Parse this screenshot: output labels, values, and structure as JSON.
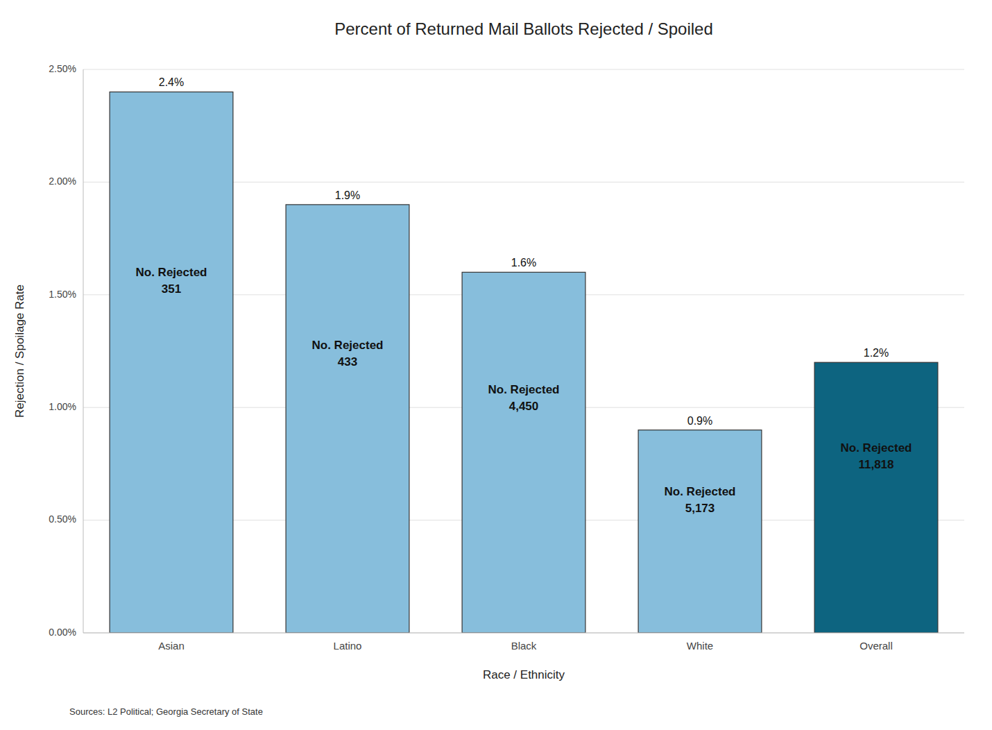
{
  "chart_data": {
    "type": "bar",
    "title": "Percent of Returned Mail Ballots Rejected / Spoiled",
    "xlabel": "Race / Ethnicity",
    "ylabel": "Rejection / Spoilage Rate",
    "categories": [
      "Asian",
      "Latino",
      "Black",
      "White",
      "Overall"
    ],
    "values": [
      0.024,
      0.019,
      0.016,
      0.009,
      0.012
    ],
    "value_labels": [
      "2.4%",
      "1.9%",
      "1.6%",
      "0.9%",
      "1.2%"
    ],
    "data_labels": true,
    "colors": [
      "#87BEDC",
      "#87BEDC",
      "#87BEDC",
      "#87BEDC",
      "#0D6480"
    ],
    "annotations": [
      [
        "No. Rejected",
        "351"
      ],
      [
        "No. Rejected",
        "433"
      ],
      [
        "No. Rejected",
        "4,450"
      ],
      [
        "No. Rejected",
        "5,173"
      ],
      [
        "No. Rejected",
        "11,818"
      ]
    ],
    "source": "Sources: L2 Political; Georgia Secretary of State",
    "ylim": [
      0,
      0.025
    ],
    "yticks": [
      {
        "value": 0.0,
        "label": "0.00%"
      },
      {
        "value": 0.005,
        "label": "0.50%"
      },
      {
        "value": 0.01,
        "label": "1.00%"
      },
      {
        "value": 0.015,
        "label": "1.50%"
      },
      {
        "value": 0.02,
        "label": "2.00%"
      },
      {
        "value": 0.025,
        "label": "2.50%"
      }
    ],
    "grid": true
  }
}
